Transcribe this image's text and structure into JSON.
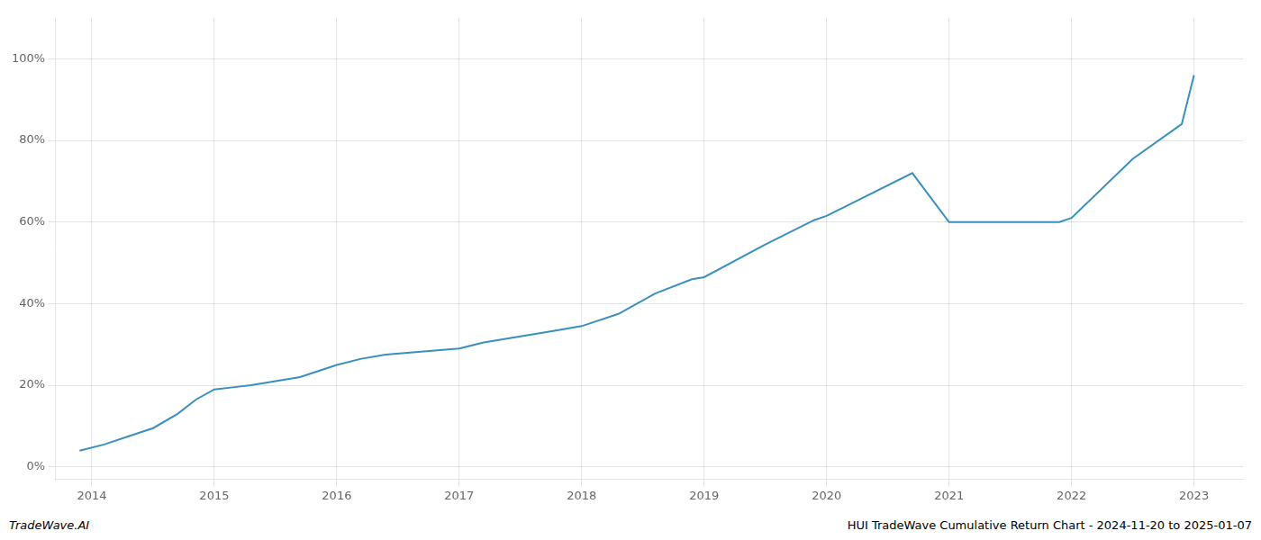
{
  "chart_data": {
    "type": "line",
    "x": [
      2013.9,
      2014.1,
      2014.3,
      2014.5,
      2014.7,
      2014.85,
      2015.0,
      2015.15,
      2015.3,
      2015.5,
      2015.7,
      2015.85,
      2016.0,
      2016.2,
      2016.4,
      2016.6,
      2016.8,
      2017.0,
      2017.2,
      2017.5,
      2017.8,
      2018.0,
      2018.3,
      2018.6,
      2018.9,
      2019.0,
      2019.5,
      2019.9,
      2020.0,
      2020.7,
      2021.0,
      2021.9,
      2022.0,
      2022.5,
      2022.9,
      2023.0
    ],
    "values": [
      0.04,
      0.055,
      0.075,
      0.095,
      0.13,
      0.165,
      0.19,
      0.195,
      0.2,
      0.21,
      0.22,
      0.235,
      0.25,
      0.265,
      0.275,
      0.28,
      0.285,
      0.29,
      0.305,
      0.32,
      0.335,
      0.345,
      0.375,
      0.425,
      0.46,
      0.465,
      0.545,
      0.605,
      0.615,
      0.72,
      0.6,
      0.6,
      0.61,
      0.755,
      0.84,
      0.96
    ],
    "color": "#3a8fc1",
    "xlim": [
      2013.7,
      2023.4
    ],
    "ylim": [
      -0.03,
      1.1
    ],
    "xticks": [
      2014,
      2015,
      2016,
      2017,
      2018,
      2019,
      2020,
      2021,
      2022,
      2023
    ],
    "yticks": [
      {
        "value": 0.0,
        "label": "0%"
      },
      {
        "value": 0.2,
        "label": "20%"
      },
      {
        "value": 0.4,
        "label": "40%"
      },
      {
        "value": 0.6,
        "label": "60%"
      },
      {
        "value": 0.8,
        "label": "80%"
      },
      {
        "value": 1.0,
        "label": "100%"
      }
    ],
    "grid": true,
    "annotations": [
      "TradeWave.AI",
      "HUI TradeWave Cumulative Return Chart - 2024-11-20 to 2025-01-07"
    ]
  }
}
